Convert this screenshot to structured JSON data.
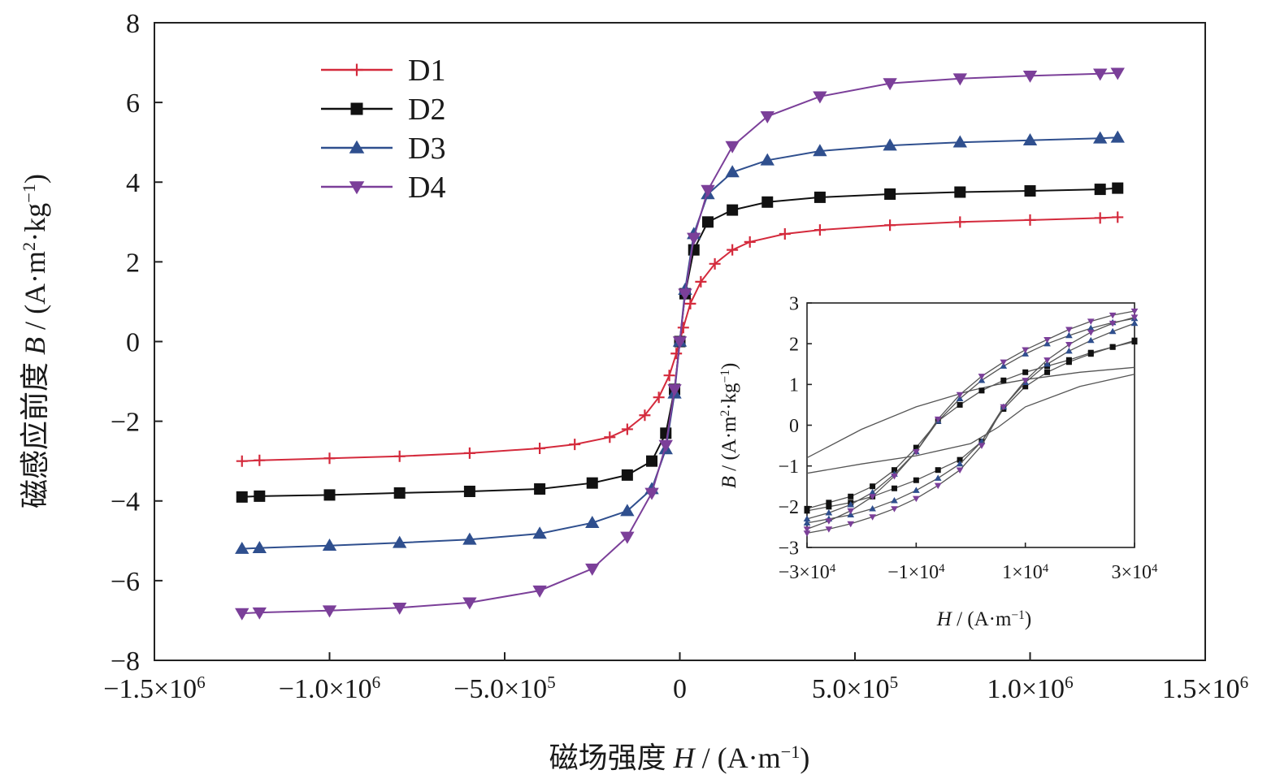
{
  "chart_data": [
    {
      "type": "line",
      "xlabel": {
        "prefix": "磁场强度 ",
        "var": "H",
        "unit": " / (A·m",
        "sup": "−1",
        "close": ")"
      },
      "ylabel": {
        "prefix": "磁感应前度 ",
        "var": "B",
        "unit": " / (A·m",
        "sup1": "2",
        "mid": "·kg",
        "sup2": "−1",
        "close": ")"
      },
      "xlim": [
        -1500000,
        1500000
      ],
      "ylim": [
        -8,
        8
      ],
      "x_ticks": [
        {
          "value": -1500000,
          "mant": "−1.5×10",
          "exp": "6"
        },
        {
          "value": -1000000,
          "mant": "−1.0×10",
          "exp": "6"
        },
        {
          "value": -500000,
          "mant": "−5.0×10",
          "exp": "5"
        },
        {
          "value": 0,
          "mant": "0",
          "exp": ""
        },
        {
          "value": 500000,
          "mant": "5.0×10",
          "exp": "5"
        },
        {
          "value": 1000000,
          "mant": "1.0×10",
          "exp": "6"
        },
        {
          "value": 1500000,
          "mant": "1.5×10",
          "exp": "6"
        }
      ],
      "y_ticks": [
        {
          "value": -8,
          "label": "−8"
        },
        {
          "value": -6,
          "label": "−6"
        },
        {
          "value": -4,
          "label": "−4"
        },
        {
          "value": -2,
          "label": "−2"
        },
        {
          "value": 0,
          "label": "0"
        },
        {
          "value": 2,
          "label": "2"
        },
        {
          "value": 4,
          "label": "4"
        },
        {
          "value": 6,
          "label": "6"
        },
        {
          "value": 8,
          "label": "8"
        }
      ],
      "legend_position": "top-left",
      "grid": false,
      "series": [
        {
          "name": "D1",
          "color": "#d42a3c",
          "marker": "plus",
          "x": [
            -1250000,
            -1200000,
            -1000000,
            -800000,
            -600000,
            -400000,
            -300000,
            -200000,
            -150000,
            -100000,
            -60000,
            -30000,
            -10000,
            0,
            10000,
            30000,
            60000,
            100000,
            150000,
            200000,
            300000,
            400000,
            600000,
            800000,
            1000000,
            1200000,
            1250000
          ],
          "y": [
            -3.0,
            -2.98,
            -2.93,
            -2.88,
            -2.8,
            -2.68,
            -2.58,
            -2.4,
            -2.2,
            -1.85,
            -1.4,
            -0.85,
            -0.3,
            0.0,
            0.35,
            0.95,
            1.5,
            1.95,
            2.3,
            2.5,
            2.7,
            2.8,
            2.92,
            3.0,
            3.05,
            3.1,
            3.12
          ]
        },
        {
          "name": "D2",
          "color": "#111111",
          "marker": "square",
          "x": [
            -1250000,
            -1200000,
            -1000000,
            -800000,
            -600000,
            -400000,
            -250000,
            -150000,
            -80000,
            -40000,
            -15000,
            0,
            15000,
            40000,
            80000,
            150000,
            250000,
            400000,
            600000,
            800000,
            1000000,
            1200000,
            1250000
          ],
          "y": [
            -3.9,
            -3.88,
            -3.85,
            -3.8,
            -3.76,
            -3.7,
            -3.55,
            -3.35,
            -3.0,
            -2.3,
            -1.2,
            0.0,
            1.2,
            2.3,
            3.0,
            3.3,
            3.5,
            3.62,
            3.7,
            3.75,
            3.78,
            3.82,
            3.85
          ]
        },
        {
          "name": "D3",
          "color": "#2f4f8e",
          "marker": "triangle-up",
          "x": [
            -1250000,
            -1200000,
            -1000000,
            -800000,
            -600000,
            -400000,
            -250000,
            -150000,
            -80000,
            -40000,
            -15000,
            0,
            15000,
            40000,
            80000,
            150000,
            250000,
            400000,
            600000,
            800000,
            1000000,
            1200000,
            1250000
          ],
          "y": [
            -5.2,
            -5.18,
            -5.12,
            -5.05,
            -4.97,
            -4.82,
            -4.55,
            -4.25,
            -3.7,
            -2.7,
            -1.3,
            0.0,
            1.3,
            2.7,
            3.7,
            4.25,
            4.55,
            4.78,
            4.92,
            5.0,
            5.05,
            5.1,
            5.12
          ]
        },
        {
          "name": "D4",
          "color": "#7b3f99",
          "marker": "triangle-down",
          "x": [
            -1250000,
            -1200000,
            -1000000,
            -800000,
            -600000,
            -400000,
            -250000,
            -150000,
            -80000,
            -40000,
            -15000,
            0,
            15000,
            40000,
            80000,
            150000,
            250000,
            400000,
            600000,
            800000,
            1000000,
            1200000,
            1250000
          ],
          "y": [
            -6.82,
            -6.8,
            -6.75,
            -6.68,
            -6.55,
            -6.25,
            -5.7,
            -4.9,
            -3.8,
            -2.6,
            -1.2,
            0.0,
            1.2,
            2.6,
            3.8,
            4.9,
            5.65,
            6.15,
            6.48,
            6.6,
            6.67,
            6.72,
            6.74
          ]
        }
      ]
    },
    {
      "type": "line",
      "inset": true,
      "xlabel": {
        "var": "H",
        "unit": " / (A·m",
        "sup": "−1",
        "close": ")"
      },
      "ylabel": {
        "var": "B",
        "unit": " / (A·m",
        "sup1": "2",
        "mid": "·kg",
        "sup2": "−1",
        "close": ")"
      },
      "xlim": [
        -30000,
        30000
      ],
      "ylim": [
        -3,
        3
      ],
      "x_ticks": [
        {
          "value": -30000,
          "mant": "−3×10",
          "exp": "4"
        },
        {
          "value": -10000,
          "mant": "−1×10",
          "exp": "4"
        },
        {
          "value": 10000,
          "mant": "1×10",
          "exp": "4"
        },
        {
          "value": 30000,
          "mant": "3×10",
          "exp": "4"
        }
      ],
      "y_ticks": [
        {
          "value": -3,
          "label": "−3"
        },
        {
          "value": -2,
          "label": "−2"
        },
        {
          "value": -1,
          "label": "−1"
        },
        {
          "value": 0,
          "label": "0"
        },
        {
          "value": 1,
          "label": "1"
        },
        {
          "value": 2,
          "label": "2"
        },
        {
          "value": 3,
          "label": "3"
        }
      ],
      "series": [
        {
          "name": "D1",
          "color": "#555555",
          "marker": "none",
          "x": [
            -30000,
            -20000,
            -10000,
            -5000,
            0,
            5000,
            10000,
            20000,
            30000
          ],
          "y": [
            -0.8,
            -0.1,
            0.45,
            0.65,
            0.85,
            1.0,
            1.12,
            1.3,
            1.42
          ]
        },
        {
          "name": "D1",
          "color": "#555555",
          "marker": "none",
          "x": [
            -30000,
            -20000,
            -10000,
            0,
            5000,
            10000,
            20000,
            30000
          ],
          "y": [
            -1.18,
            -0.95,
            -0.75,
            -0.45,
            -0.05,
            0.45,
            0.95,
            1.25
          ]
        },
        {
          "name": "D2",
          "color": "#111111",
          "marker": "square",
          "x": [
            -30000,
            -26000,
            -22000,
            -18000,
            -14000,
            -10000,
            -6000,
            -2000,
            2000,
            6000,
            10000,
            14000,
            18000,
            22000,
            26000,
            30000
          ],
          "y": [
            -2.05,
            -1.9,
            -1.75,
            -1.5,
            -1.1,
            -0.55,
            0.1,
            0.5,
            0.85,
            1.1,
            1.3,
            1.45,
            1.6,
            1.78,
            1.92,
            2.05
          ]
        },
        {
          "name": "D2",
          "color": "#111111",
          "marker": "square",
          "x": [
            -30000,
            -26000,
            -22000,
            -18000,
            -14000,
            -10000,
            -6000,
            -2000,
            2000,
            6000,
            10000,
            14000,
            18000,
            22000,
            26000,
            30000
          ],
          "y": [
            -2.1,
            -2.0,
            -1.9,
            -1.75,
            -1.55,
            -1.35,
            -1.1,
            -0.85,
            -0.4,
            0.4,
            0.95,
            1.3,
            1.55,
            1.75,
            1.92,
            2.08
          ]
        },
        {
          "name": "D3",
          "color": "#2f4f8e",
          "marker": "triangle-up",
          "x": [
            -30000,
            -26000,
            -22000,
            -18000,
            -14000,
            -10000,
            -6000,
            -2000,
            2000,
            6000,
            10000,
            14000,
            18000,
            22000,
            26000,
            30000
          ],
          "y": [
            -2.3,
            -2.15,
            -1.95,
            -1.65,
            -1.2,
            -0.65,
            0.1,
            0.65,
            1.1,
            1.45,
            1.75,
            2.0,
            2.2,
            2.38,
            2.52,
            2.62
          ]
        },
        {
          "name": "D3",
          "color": "#2f4f8e",
          "marker": "triangle-up",
          "x": [
            -30000,
            -26000,
            -22000,
            -18000,
            -14000,
            -10000,
            -6000,
            -2000,
            2000,
            6000,
            10000,
            14000,
            18000,
            22000,
            26000,
            30000
          ],
          "y": [
            -2.4,
            -2.3,
            -2.2,
            -2.05,
            -1.85,
            -1.6,
            -1.3,
            -0.95,
            -0.4,
            0.45,
            1.05,
            1.5,
            1.82,
            2.08,
            2.3,
            2.5
          ]
        },
        {
          "name": "D4",
          "color": "#7b3f99",
          "marker": "triangle-down",
          "x": [
            -30000,
            -26000,
            -22000,
            -18000,
            -14000,
            -10000,
            -6000,
            -2000,
            2000,
            6000,
            10000,
            14000,
            18000,
            22000,
            26000,
            30000
          ],
          "y": [
            -2.55,
            -2.35,
            -2.1,
            -1.75,
            -1.25,
            -0.65,
            0.15,
            0.75,
            1.2,
            1.55,
            1.85,
            2.1,
            2.35,
            2.55,
            2.7,
            2.8
          ]
        },
        {
          "name": "D4",
          "color": "#7b3f99",
          "marker": "triangle-down",
          "x": [
            -30000,
            -26000,
            -22000,
            -18000,
            -14000,
            -10000,
            -6000,
            -2000,
            2000,
            6000,
            10000,
            14000,
            18000,
            22000,
            26000,
            30000
          ],
          "y": [
            -2.65,
            -2.55,
            -2.42,
            -2.25,
            -2.05,
            -1.8,
            -1.48,
            -1.1,
            -0.5,
            0.45,
            1.1,
            1.6,
            1.98,
            2.28,
            2.5,
            2.65
          ]
        }
      ]
    }
  ]
}
